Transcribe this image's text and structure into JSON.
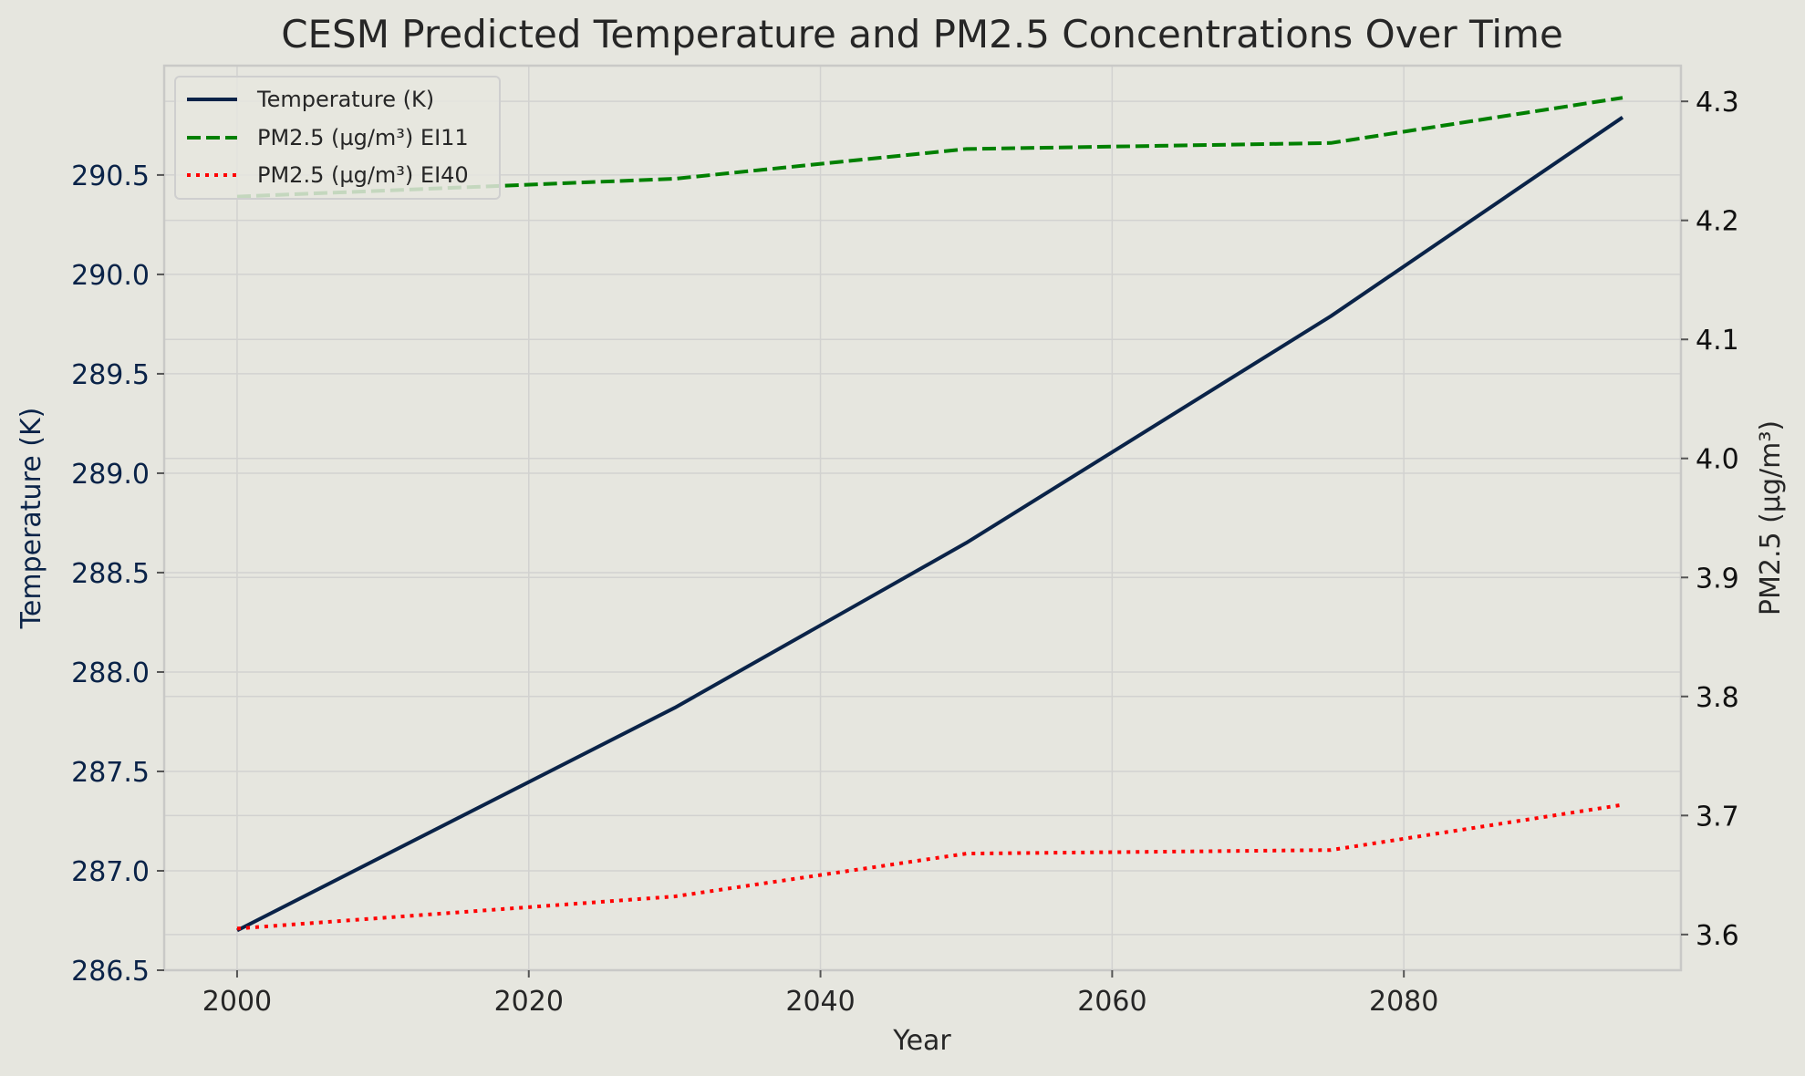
{
  "chart_data": {
    "type": "line",
    "title": "CESM Predicted Temperature and PM2.5 Concentrations Over Time",
    "xlabel": "Year",
    "ylabel_left": "Temperature (K)",
    "ylabel_right": "PM2.5 (µg/m³)",
    "x": [
      2000,
      2030,
      2050,
      2075,
      2095
    ],
    "xlim": [
      1995,
      2099
    ],
    "ylim_left": [
      286.5,
      291.05
    ],
    "ylim_right": [
      3.57,
      4.33
    ],
    "xticks": [
      2000,
      2020,
      2040,
      2060,
      2080
    ],
    "yticks_left": [
      286.5,
      287.0,
      287.5,
      288.0,
      288.5,
      289.0,
      289.5,
      290.0,
      290.5
    ],
    "yticks_right": [
      3.6,
      3.7,
      3.8,
      3.9,
      4.0,
      4.1,
      4.2,
      4.3
    ],
    "grid": true,
    "legend_position": "top-left",
    "series": [
      {
        "name": "Temperature (K)",
        "axis": "left",
        "color": "#0a2348",
        "style": "solid",
        "values": [
          286.7,
          287.82,
          288.65,
          289.79,
          290.79
        ]
      },
      {
        "name": "PM2.5 (µg/m³) EI11",
        "axis": "right",
        "color": "#008000",
        "style": "dashed",
        "values": [
          4.22,
          4.235,
          4.26,
          4.265,
          4.303
        ]
      },
      {
        "name": "PM2.5 (µg/m³) EI40",
        "axis": "right",
        "color": "#ff0000",
        "style": "dotted",
        "values": [
          3.605,
          3.632,
          3.668,
          3.671,
          3.709
        ]
      }
    ],
    "colors": {
      "left_tick_color": "#0a2348",
      "right_tick_color": "#111111",
      "background": "#e6e6df"
    }
  }
}
